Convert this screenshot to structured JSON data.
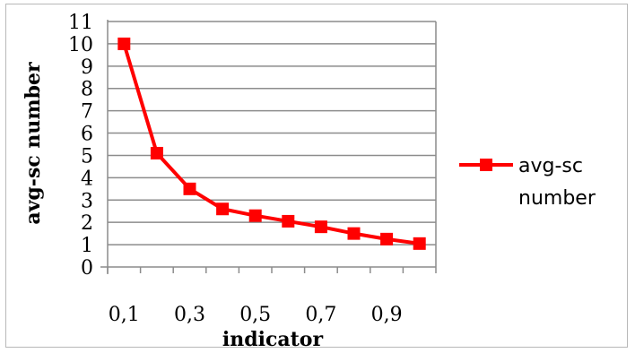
{
  "chart_data": {
    "type": "line",
    "title": "",
    "xlabel": "indicator",
    "ylabel": "avg-sc number",
    "x_tick_labels": [
      "0,1",
      "0,3",
      "0,5",
      "0,7",
      "0,9"
    ],
    "y_tick_labels": [
      "0",
      "1",
      "2",
      "3",
      "4",
      "5",
      "6",
      "7",
      "8",
      "9",
      "10",
      "11"
    ],
    "ylim": [
      0,
      11
    ],
    "grid": true,
    "legend": {
      "placement": "right",
      "line1": "avg-sc",
      "line2": "number"
    },
    "series": [
      {
        "name": "avg-sc number",
        "color": "#ff0000",
        "marker": "square",
        "x": [
          0.1,
          0.2,
          0.3,
          0.4,
          0.5,
          0.6,
          0.7,
          0.8,
          0.9,
          1.0
        ],
        "values": [
          10,
          5.1,
          3.5,
          2.6,
          2.3,
          2.05,
          1.8,
          1.5,
          1.25,
          1.05
        ]
      }
    ]
  }
}
